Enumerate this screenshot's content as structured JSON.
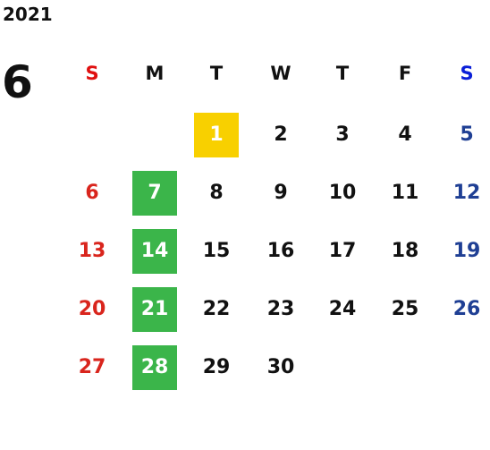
{
  "header": {
    "year": "2021",
    "month": "6"
  },
  "weekdays": [
    "S",
    "M",
    "T",
    "W",
    "T",
    "F",
    "S"
  ],
  "weeks": [
    [
      null,
      null,
      "1",
      "2",
      "3",
      "4",
      "5"
    ],
    [
      "6",
      "7",
      "8",
      "9",
      "10",
      "11",
      "12"
    ],
    [
      "13",
      "14",
      "15",
      "16",
      "17",
      "18",
      "19"
    ],
    [
      "20",
      "21",
      "22",
      "23",
      "24",
      "25",
      "26"
    ],
    [
      "27",
      "28",
      "29",
      "30",
      null,
      null,
      null
    ]
  ]
}
